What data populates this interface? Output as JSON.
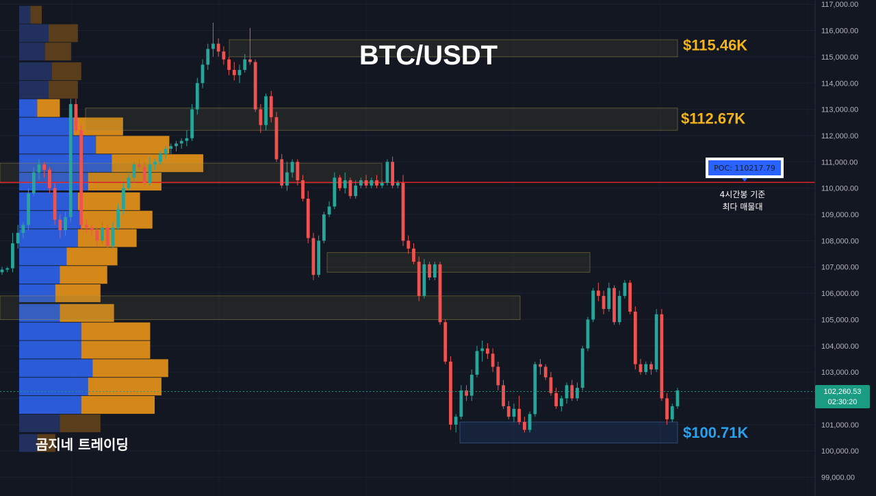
{
  "chart_data": {
    "type": "candlestick",
    "title": "BTC/USDT",
    "brand": "곰지네 트레이딩",
    "y_axis": {
      "ylim": [
        98600,
        117200
      ],
      "ticks": [
        99000,
        100000,
        101000,
        102000,
        103000,
        104000,
        105000,
        106000,
        107000,
        108000,
        109000,
        110000,
        111000,
        112000,
        113000,
        114000,
        115000,
        116000,
        117000
      ],
      "tick_labels": [
        "99,000.00",
        "100,000.00",
        "101,000.00",
        "102,000.00",
        "103,000.00",
        "104,000.00",
        "105,000.00",
        "106,000.00",
        "107,000.00",
        "108,000.00",
        "109,000.00",
        "110,000.00",
        "111,000.00",
        "112,000.00",
        "113,000.00",
        "114,000.00",
        "115,000.00",
        "116,000.00",
        "117,000.00"
      ]
    },
    "current_price": {
      "value": 102260.53,
      "label": "102,260.53",
      "countdown": "02:30:20",
      "color": "#1a9c82"
    },
    "poc": {
      "value": 110217.79,
      "label": "POC: 110217.79",
      "note_line1": "4시간봉 기준",
      "note_line2": "최다 매물대",
      "line_color": "#e0202a"
    },
    "level_labels": [
      {
        "value": 115460,
        "text": "$115.46K",
        "color": "#f2b418"
      },
      {
        "value": 112670,
        "text": "$112.67K",
        "color": "#f2b418"
      },
      {
        "value": 100710,
        "text": "$100.71K",
        "color": "#2aa1ee"
      }
    ],
    "zones": [
      {
        "from": 115000,
        "to": 115650,
        "kind": "supply"
      },
      {
        "from": 112200,
        "to": 113050,
        "kind": "supply"
      },
      {
        "from": 110200,
        "to": 110950,
        "kind": "supply"
      },
      {
        "from": 106800,
        "to": 107550,
        "kind": "supply"
      },
      {
        "from": 105000,
        "to": 105900,
        "kind": "supply"
      },
      {
        "from": 100300,
        "to": 101100,
        "kind": "demand"
      }
    ],
    "volume_profile_note": "relative volume per price row, buy and sell",
    "volume_profile": [
      {
        "price": 116600,
        "buy": 0.1,
        "sell": 0.1
      },
      {
        "price": 115900,
        "buy": 0.26,
        "sell": 0.26
      },
      {
        "price": 115200,
        "buy": 0.23,
        "sell": 0.23
      },
      {
        "price": 114450,
        "buy": 0.29,
        "sell": 0.26
      },
      {
        "price": 113750,
        "buy": 0.26,
        "sell": 0.26
      },
      {
        "price": 113050,
        "buy": 0.16,
        "sell": 0.2
      },
      {
        "price": 112350,
        "buy": 0.48,
        "sell": 0.44
      },
      {
        "price": 111650,
        "buy": 0.68,
        "sell": 0.65
      },
      {
        "price": 110950,
        "buy": 0.82,
        "sell": 0.81
      },
      {
        "price": 110250,
        "buy": 0.61,
        "sell": 0.65
      },
      {
        "price": 109500,
        "buy": 0.52,
        "sell": 0.55
      },
      {
        "price": 108800,
        "buy": 0.55,
        "sell": 0.63
      },
      {
        "price": 108100,
        "buy": 0.52,
        "sell": 0.52
      },
      {
        "price": 107400,
        "buy": 0.42,
        "sell": 0.45
      },
      {
        "price": 106700,
        "buy": 0.36,
        "sell": 0.42
      },
      {
        "price": 106000,
        "buy": 0.32,
        "sell": 0.4
      },
      {
        "price": 105250,
        "buy": 0.36,
        "sell": 0.48
      },
      {
        "price": 104550,
        "buy": 0.55,
        "sell": 0.61
      },
      {
        "price": 103850,
        "buy": 0.55,
        "sell": 0.61
      },
      {
        "price": 103150,
        "buy": 0.65,
        "sell": 0.67
      },
      {
        "price": 102450,
        "buy": 0.61,
        "sell": 0.65
      },
      {
        "price": 101750,
        "buy": 0.55,
        "sell": 0.65
      },
      {
        "price": 101050,
        "buy": 0.36,
        "sell": 0.36
      },
      {
        "price": 100300,
        "buy": 0.16,
        "sell": 0.16
      }
    ],
    "candles_note": "approximate OHLC read from 4h chart, oldest first",
    "candles": [
      [
        106800,
        107000,
        106700,
        106900
      ],
      [
        106900,
        107000,
        106800,
        106950
      ],
      [
        106950,
        108300,
        106800,
        107900
      ],
      [
        107900,
        108600,
        107700,
        108300
      ],
      [
        108300,
        108700,
        108100,
        108600
      ],
      [
        108600,
        110000,
        108400,
        109800
      ],
      [
        109800,
        110800,
        109700,
        110600
      ],
      [
        110600,
        111100,
        110300,
        110900
      ],
      [
        110900,
        111000,
        110400,
        110700
      ],
      [
        110700,
        110800,
        109800,
        110000
      ],
      [
        110000,
        110200,
        108600,
        108800
      ],
      [
        108800,
        109000,
        108100,
        108400
      ],
      [
        108400,
        109100,
        108200,
        108900
      ],
      [
        108900,
        113400,
        108700,
        113200
      ],
      [
        113200,
        113400,
        112100,
        112200
      ],
      [
        112200,
        112400,
        108400,
        108600
      ],
      [
        108600,
        108800,
        108300,
        108500
      ],
      [
        108500,
        108600,
        108200,
        108400
      ],
      [
        108400,
        108500,
        107800,
        108000
      ],
      [
        108000,
        108700,
        107900,
        108500
      ],
      [
        108500,
        108600,
        107700,
        107800
      ],
      [
        107800,
        108700,
        107700,
        108500
      ],
      [
        108500,
        109400,
        108400,
        109200
      ],
      [
        109200,
        110200,
        109000,
        110000
      ],
      [
        110000,
        110600,
        109900,
        110400
      ],
      [
        110400,
        111000,
        110200,
        110900
      ],
      [
        110900,
        111100,
        110700,
        110800
      ],
      [
        110800,
        111000,
        110100,
        110200
      ],
      [
        110200,
        111200,
        110100,
        110900
      ],
      [
        110900,
        111100,
        110700,
        111000
      ],
      [
        111000,
        111400,
        110900,
        111300
      ],
      [
        111300,
        111600,
        111100,
        111500
      ],
      [
        111500,
        111700,
        111300,
        111600
      ],
      [
        111600,
        111800,
        111400,
        111700
      ],
      [
        111700,
        111900,
        111500,
        111800
      ],
      [
        111800,
        112200,
        111600,
        111900
      ],
      [
        111900,
        113200,
        111800,
        113000
      ],
      [
        113000,
        114200,
        112800,
        114000
      ],
      [
        114000,
        114900,
        113800,
        114700
      ],
      [
        114700,
        115500,
        114500,
        115300
      ],
      [
        115300,
        116300,
        115000,
        115500
      ],
      [
        115500,
        115700,
        115000,
        115200
      ],
      [
        115200,
        115400,
        114700,
        114900
      ],
      [
        114900,
        115000,
        114300,
        114500
      ],
      [
        114500,
        114800,
        114100,
        114300
      ],
      [
        114300,
        114700,
        114000,
        114500
      ],
      [
        114500,
        115100,
        114400,
        114900
      ],
      [
        114900,
        116100,
        114700,
        114800
      ],
      [
        114800,
        114900,
        112900,
        113000
      ],
      [
        113000,
        113200,
        112100,
        112400
      ],
      [
        112400,
        113600,
        112200,
        113500
      ],
      [
        113500,
        113700,
        112500,
        112700
      ],
      [
        112700,
        112900,
        111000,
        111100
      ],
      [
        111100,
        111300,
        110000,
        110100
      ],
      [
        110100,
        111000,
        109900,
        110600
      ],
      [
        110600,
        111100,
        110400,
        111000
      ],
      [
        111000,
        111100,
        110100,
        110300
      ],
      [
        110300,
        110500,
        109500,
        109600
      ],
      [
        109600,
        109900,
        107900,
        108100
      ],
      [
        108100,
        108300,
        106500,
        106700
      ],
      [
        106700,
        108200,
        106600,
        108000
      ],
      [
        108000,
        109100,
        107900,
        109000
      ],
      [
        109000,
        109500,
        108900,
        109300
      ],
      [
        109300,
        110600,
        109200,
        110400
      ],
      [
        110400,
        110500,
        109900,
        110000
      ],
      [
        110000,
        110600,
        109800,
        110300
      ],
      [
        110300,
        110400,
        109600,
        109700
      ],
      [
        109700,
        110300,
        109600,
        110100
      ],
      [
        110100,
        110400,
        110000,
        110300
      ],
      [
        110300,
        110500,
        110000,
        110100
      ],
      [
        110100,
        110400,
        110000,
        110300
      ],
      [
        110300,
        110500,
        110000,
        110100
      ],
      [
        110100,
        110300,
        110000,
        110200
      ],
      [
        110200,
        111100,
        110100,
        111000
      ],
      [
        111000,
        111200,
        110000,
        110100
      ],
      [
        110100,
        110300,
        110000,
        110200
      ],
      [
        110200,
        110500,
        107800,
        108000
      ],
      [
        108000,
        108200,
        107500,
        107700
      ],
      [
        107700,
        107900,
        107100,
        107200
      ],
      [
        107200,
        107400,
        105700,
        105900
      ],
      [
        105900,
        107300,
        105800,
        107100
      ],
      [
        107100,
        107200,
        106500,
        106600
      ],
      [
        106600,
        107200,
        106500,
        107100
      ],
      [
        107100,
        107200,
        104800,
        104900
      ],
      [
        104900,
        105000,
        103300,
        103400
      ],
      [
        103400,
        103600,
        100800,
        101000
      ],
      [
        101000,
        101400,
        100700,
        101300
      ],
      [
        101300,
        102500,
        101200,
        102300
      ],
      [
        102300,
        102500,
        101900,
        102100
      ],
      [
        102100,
        103100,
        101900,
        102900
      ],
      [
        102900,
        104000,
        102800,
        103800
      ],
      [
        103800,
        104200,
        103400,
        103900
      ],
      [
        103900,
        104100,
        103500,
        103700
      ],
      [
        103700,
        103900,
        103000,
        103200
      ],
      [
        103200,
        103400,
        102300,
        102500
      ],
      [
        102500,
        102700,
        101600,
        101700
      ],
      [
        101700,
        101900,
        101200,
        101300
      ],
      [
        101300,
        101800,
        101100,
        101600
      ],
      [
        101600,
        102100,
        101000,
        101100
      ],
      [
        101100,
        101300,
        100700,
        100800
      ],
      [
        100800,
        101500,
        100700,
        101400
      ],
      [
        101400,
        103400,
        101300,
        103300
      ],
      [
        103300,
        103500,
        102900,
        103200
      ],
      [
        103200,
        103300,
        102700,
        102800
      ],
      [
        102800,
        103000,
        102100,
        102200
      ],
      [
        102200,
        102400,
        101600,
        101700
      ],
      [
        101700,
        102100,
        101500,
        102000
      ],
      [
        102000,
        102600,
        101800,
        102500
      ],
      [
        102500,
        102700,
        101900,
        102000
      ],
      [
        102000,
        102600,
        101900,
        102400
      ],
      [
        102400,
        104000,
        102300,
        103900
      ],
      [
        103900,
        105100,
        103800,
        105000
      ],
      [
        105000,
        106200,
        104900,
        106100
      ],
      [
        106100,
        106400,
        105700,
        105900
      ],
      [
        105900,
        106100,
        105200,
        105400
      ],
      [
        105400,
        106400,
        105300,
        106200
      ],
      [
        106200,
        106300,
        104800,
        104900
      ],
      [
        104900,
        106100,
        104800,
        105900
      ],
      [
        105900,
        106500,
        105800,
        106400
      ],
      [
        106400,
        106500,
        105200,
        105300
      ],
      [
        105300,
        105500,
        103100,
        103300
      ],
      [
        103300,
        103500,
        102900,
        103000
      ],
      [
        103000,
        103400,
        102900,
        103300
      ],
      [
        103300,
        103400,
        102900,
        103100
      ],
      [
        103100,
        105400,
        103000,
        105200
      ],
      [
        105200,
        105400,
        101900,
        102000
      ],
      [
        102000,
        102200,
        101000,
        101200
      ],
      [
        101200,
        101800,
        101100,
        101700
      ],
      [
        101700,
        102400,
        101600,
        102300
      ]
    ]
  }
}
